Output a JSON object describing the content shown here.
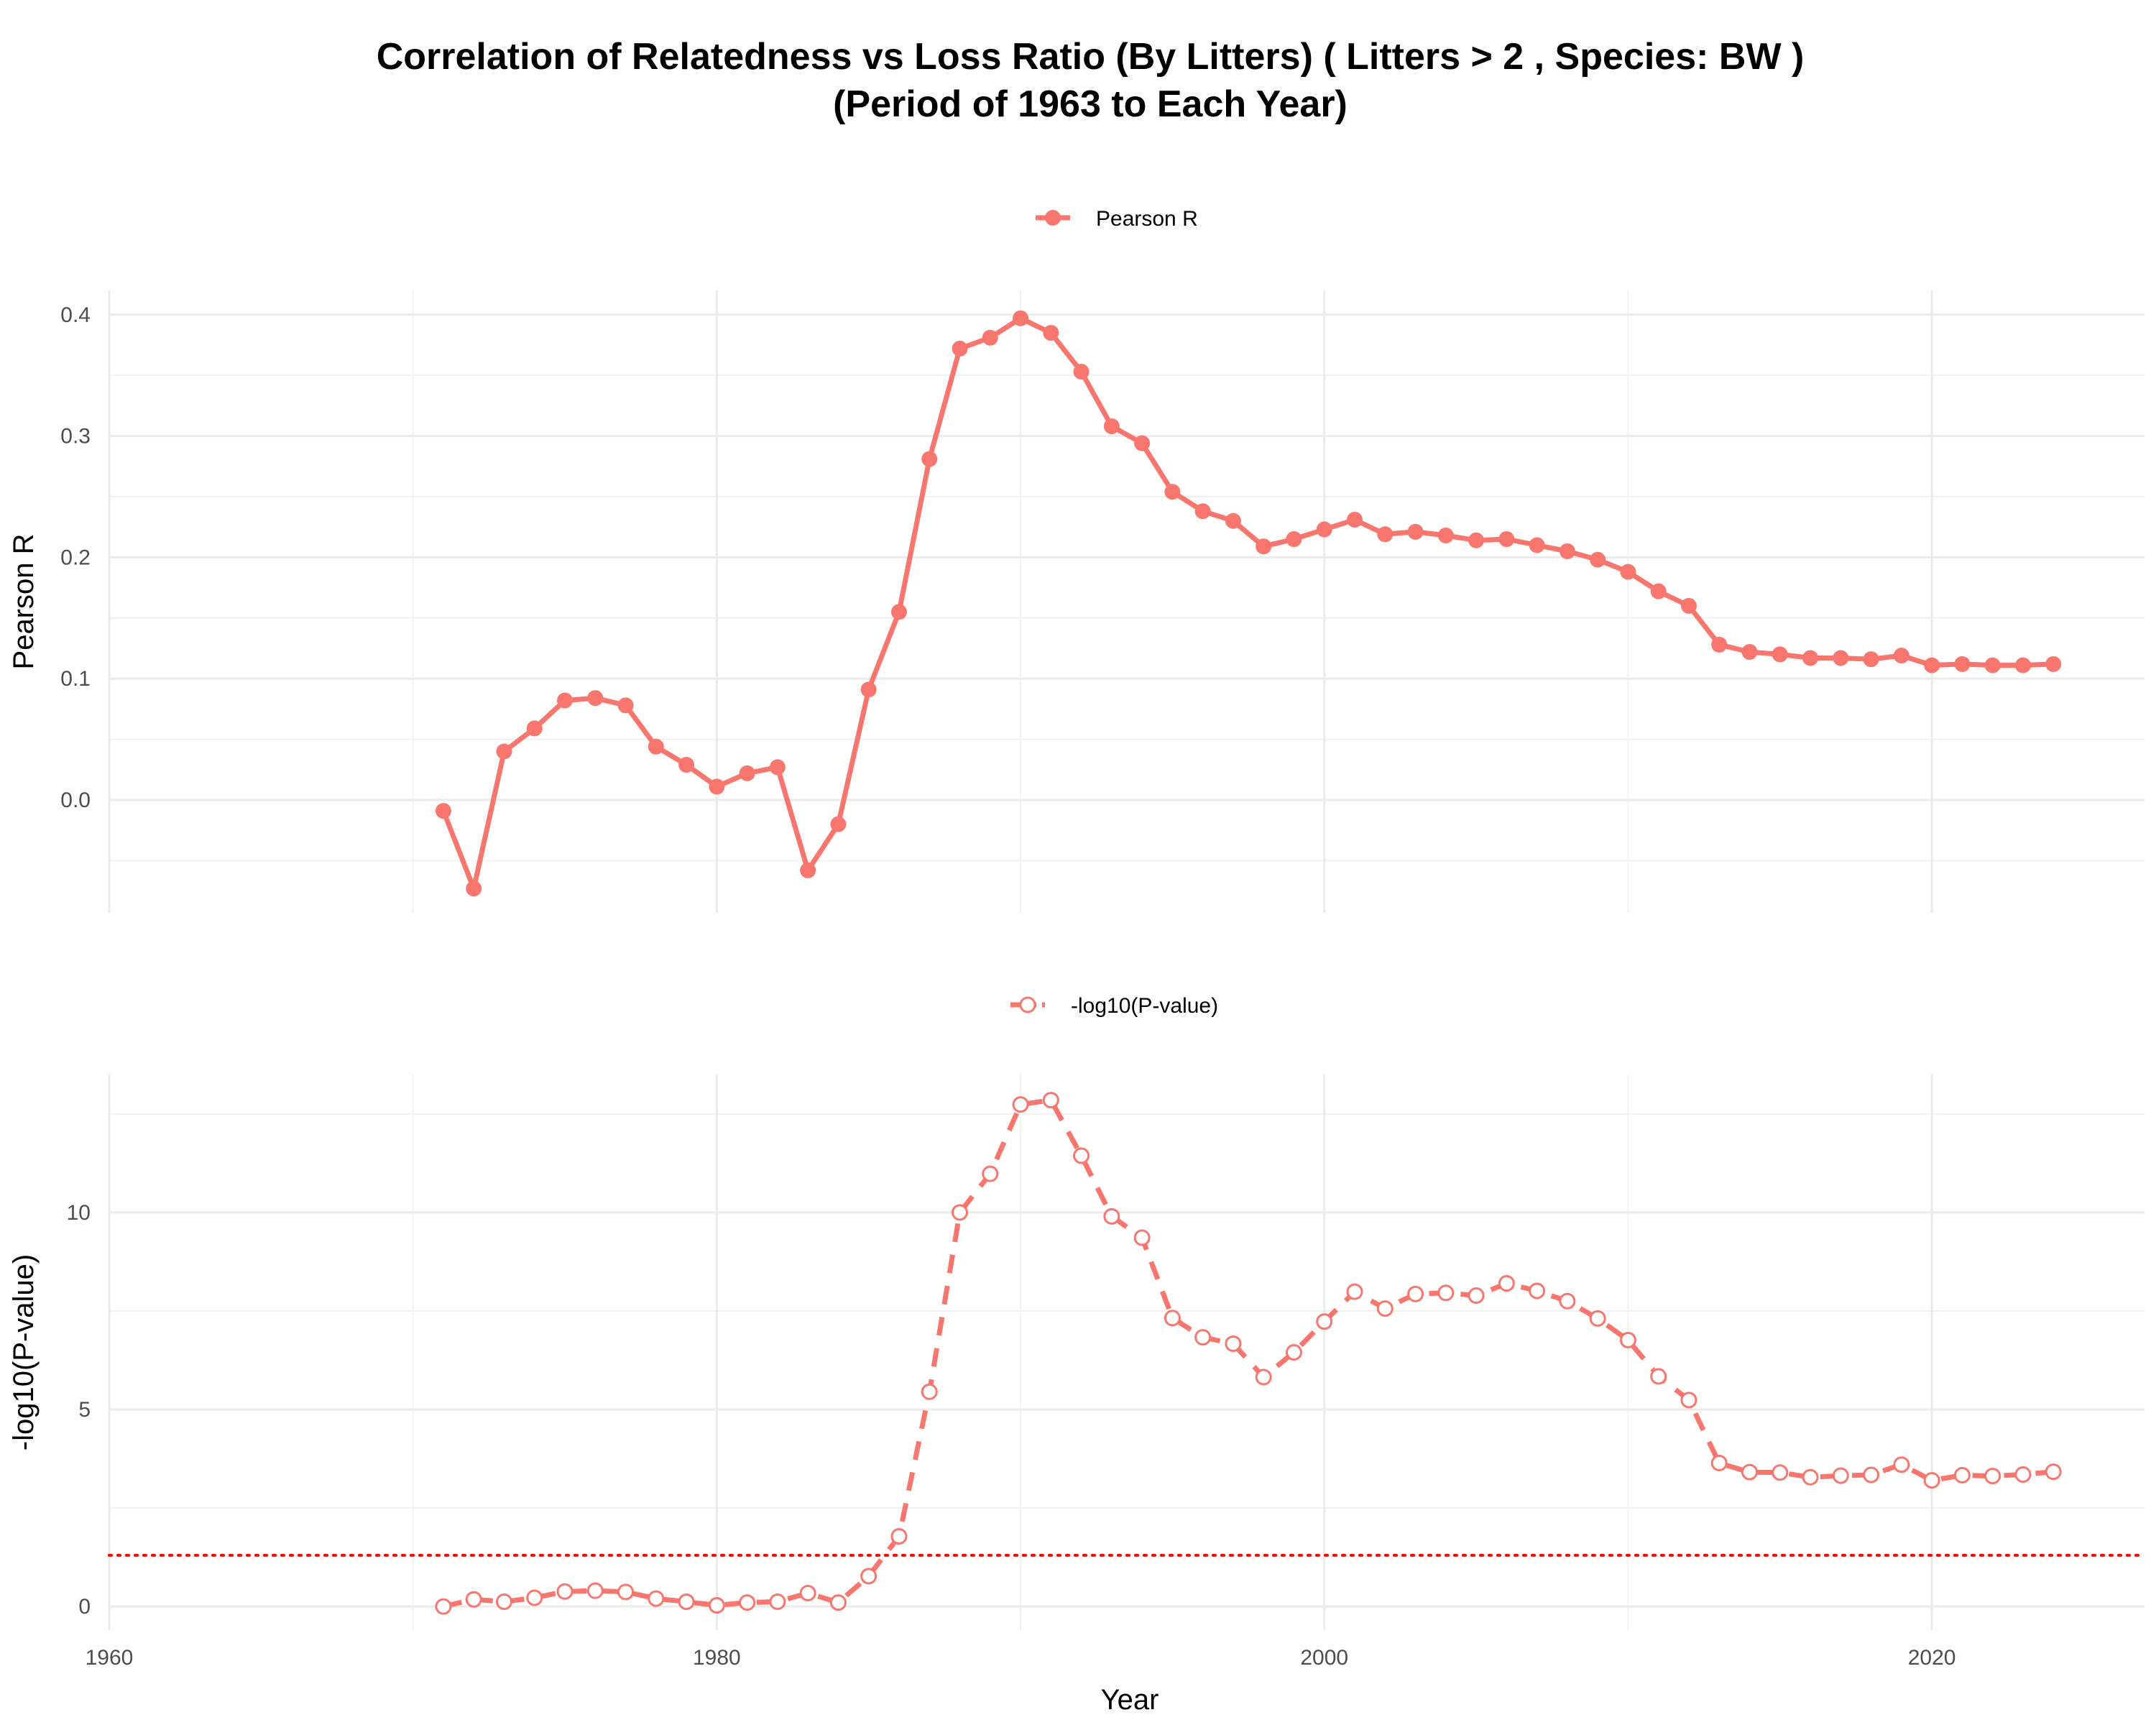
{
  "chart_data": {
    "type": "line",
    "title_line1": "Correlation of Relatedness vs Loss Ratio (By Litters) ( Litters > 2 , Species: BW )",
    "title_line2": "(Period of 1963 to Each Year)",
    "xlabel": "Year",
    "xlim": [
      1960,
      2027
    ],
    "x_ticks": [
      1960,
      1980,
      2000,
      2020
    ],
    "x": [
      1971,
      1972,
      1973,
      1974,
      1975,
      1976,
      1977,
      1978,
      1979,
      1980,
      1981,
      1982,
      1983,
      1984,
      1985,
      1986,
      1987,
      1988,
      1989,
      1990,
      1991,
      1992,
      1993,
      1994,
      1995,
      1996,
      1997,
      1998,
      1999,
      2000,
      2001,
      2002,
      2003,
      2004,
      2005,
      2006,
      2007,
      2008,
      2009,
      2010,
      2011,
      2012,
      2013,
      2014,
      2015,
      2016,
      2017,
      2018,
      2019,
      2020,
      2021,
      2022,
      2023,
      2024
    ],
    "grid": true,
    "accent_color": "#F8766D",
    "threshold_color": "#FF0000",
    "panels": [
      {
        "ylabel": "Pearson R",
        "ylim": [
          -0.093,
          0.42
        ],
        "y_ticks": [
          0.0,
          0.1,
          0.2,
          0.3,
          0.4
        ],
        "y_tick_labels": [
          "0.0",
          "0.1",
          "0.2",
          "0.3",
          "0.4"
        ],
        "series": [
          {
            "name": "Pearson R",
            "style": "solid-filled-points",
            "values": [
              -0.009,
              -0.073,
              0.04,
              0.059,
              0.082,
              0.084,
              0.078,
              0.044,
              0.029,
              0.011,
              0.022,
              0.027,
              -0.058,
              -0.02,
              0.091,
              0.155,
              0.281,
              0.372,
              0.381,
              0.397,
              0.385,
              0.353,
              0.308,
              0.294,
              0.254,
              0.238,
              0.23,
              0.209,
              0.215,
              0.223,
              0.231,
              0.219,
              0.221,
              0.218,
              0.214,
              0.215,
              0.21,
              0.205,
              0.198,
              0.188,
              0.172,
              0.16,
              0.128,
              0.122,
              0.12,
              0.117,
              0.117,
              0.116,
              0.119,
              0.111,
              0.112,
              0.111,
              0.111,
              0.112
            ]
          }
        ]
      },
      {
        "ylabel": "-log10(P-value)",
        "ylim": [
          -0.6,
          13.5
        ],
        "y_ticks": [
          0,
          5,
          10
        ],
        "y_tick_labels": [
          "0",
          "5",
          "10"
        ],
        "threshold": 1.3,
        "series": [
          {
            "name": "-log10(P-value)",
            "style": "dashed-open-points",
            "values": [
              0.0,
              0.18,
              0.12,
              0.22,
              0.38,
              0.4,
              0.37,
              0.2,
              0.12,
              0.03,
              0.1,
              0.12,
              0.34,
              0.1,
              0.77,
              1.78,
              5.45,
              10.0,
              10.98,
              12.74,
              12.85,
              11.44,
              9.9,
              9.36,
              7.32,
              6.83,
              6.67,
              5.82,
              6.45,
              7.23,
              7.99,
              7.56,
              7.93,
              7.96,
              7.89,
              8.2,
              8.01,
              7.75,
              7.31,
              6.76,
              5.84,
              5.24,
              3.64,
              3.41,
              3.4,
              3.28,
              3.32,
              3.34,
              3.6,
              3.2,
              3.33,
              3.31,
              3.35,
              3.42
            ]
          }
        ]
      }
    ]
  }
}
